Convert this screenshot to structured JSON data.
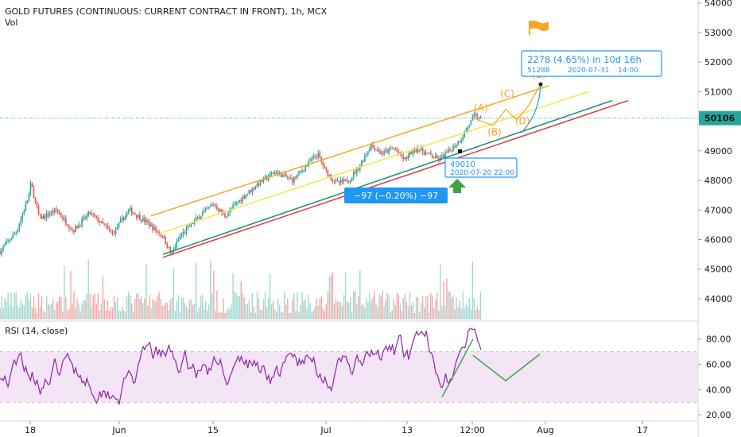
{
  "header": {
    "title": "GOLD FUTURES (CONTINUOUS: CURRENT CONTRACT IN FRONT), 1h, MCX",
    "volume_label": "Vol",
    "rsi_label": "RSI (14, close)"
  },
  "colors": {
    "up": "#26a69a",
    "down": "#ef5350",
    "orange": "#f6a623",
    "yellow": "#f5e64a",
    "teal": "#1e8c7a",
    "red": "#e53935",
    "blue": "#2196f3",
    "rsi": "#8e24aa",
    "rsi_band": "#f3e5f5",
    "green": "#43a047",
    "price_line": "#26a69a"
  },
  "chart_data": [
    {
      "type": "candlestick",
      "title": "GOLD FUTURES (CONTINUOUS: CURRENT CONTRACT IN FRONT), 1h, MCX",
      "yaxis": {
        "ticks": [
          44000,
          45000,
          46000,
          47000,
          48000,
          49000,
          50000,
          51000,
          52000,
          53000,
          54000
        ],
        "ylim": [
          43300,
          54100
        ]
      },
      "xaxis": {
        "ticks": [
          "18",
          "Jun",
          "15",
          "Jul",
          "13",
          "12:00",
          "Aug",
          "17"
        ]
      },
      "current_price": "50106",
      "price_path": [
        [
          0,
          45600
        ],
        [
          0.03,
          46300
        ],
        [
          0.05,
          47400
        ],
        [
          0.055,
          47900
        ],
        [
          0.07,
          46700
        ],
        [
          0.1,
          47000
        ],
        [
          0.13,
          46300
        ],
        [
          0.16,
          46900
        ],
        [
          0.2,
          46200
        ],
        [
          0.23,
          47000
        ],
        [
          0.26,
          46600
        ],
        [
          0.29,
          46100
        ],
        [
          0.305,
          45500
        ],
        [
          0.32,
          46100
        ],
        [
          0.35,
          46700
        ],
        [
          0.38,
          47200
        ],
        [
          0.4,
          46800
        ],
        [
          0.43,
          47400
        ],
        [
          0.46,
          47900
        ],
        [
          0.49,
          48300
        ],
        [
          0.52,
          48000
        ],
        [
          0.55,
          48600
        ],
        [
          0.565,
          48900
        ],
        [
          0.58,
          48300
        ],
        [
          0.6,
          47900
        ],
        [
          0.62,
          48000
        ],
        [
          0.64,
          48500
        ],
        [
          0.66,
          49200
        ],
        [
          0.68,
          48900
        ],
        [
          0.7,
          49100
        ],
        [
          0.72,
          48700
        ],
        [
          0.74,
          49100
        ],
        [
          0.76,
          48900
        ],
        [
          0.78,
          48700
        ],
        [
          0.8,
          49000
        ],
        [
          0.82,
          49400
        ],
        [
          0.835,
          49900
        ],
        [
          0.845,
          50200
        ],
        [
          0.855,
          50100
        ]
      ],
      "channel": {
        "orange": [
          [
            47300,
            51100
          ]
        ],
        "yellow": [
          [
            46000,
            51000
          ]
        ],
        "teal": [
          [
            45500,
            50800
          ]
        ],
        "red": [
          [
            45500,
            50800
          ]
        ]
      },
      "wave_labels": [
        "(A)",
        "(B)",
        "(C)",
        "(D)",
        "(E)"
      ],
      "annotations": {
        "target_box": {
          "line1": "2278 (4.65%) in 10d 16h",
          "line2": "51288",
          "line3": "2020-07-31",
          "line4": "14:00"
        },
        "point_box": {
          "value": "49010",
          "datetime": "2020-07-20 22:00"
        },
        "measure_box": {
          "text": "−97 (−0.20%) −97"
        }
      }
    },
    {
      "type": "bar",
      "title": "Vol",
      "series": [
        {
          "values_hint": "hourly volume bars"
        }
      ]
    },
    {
      "type": "line",
      "title": "RSI (14, close)",
      "yaxis": {
        "ticks": [
          20.0,
          40.0,
          60.0,
          80.0
        ],
        "ylim": [
          15,
          93
        ]
      },
      "bands": [
        30,
        70
      ],
      "projection": [
        [
          80,
          67
        ],
        [
          0,
          47
        ],
        [
          0,
          68
        ]
      ]
    }
  ],
  "axis_labels": {
    "price": [
      "54000",
      "53000",
      "52000",
      "51000",
      "49000",
      "48000",
      "47000",
      "46000",
      "45000",
      "44000"
    ],
    "rsi": [
      "80.00",
      "60.00",
      "40.00",
      "20.00"
    ],
    "x": [
      "18",
      "Jun",
      "15",
      "Jul",
      "13",
      "12:00",
      "Aug",
      "17"
    ]
  }
}
